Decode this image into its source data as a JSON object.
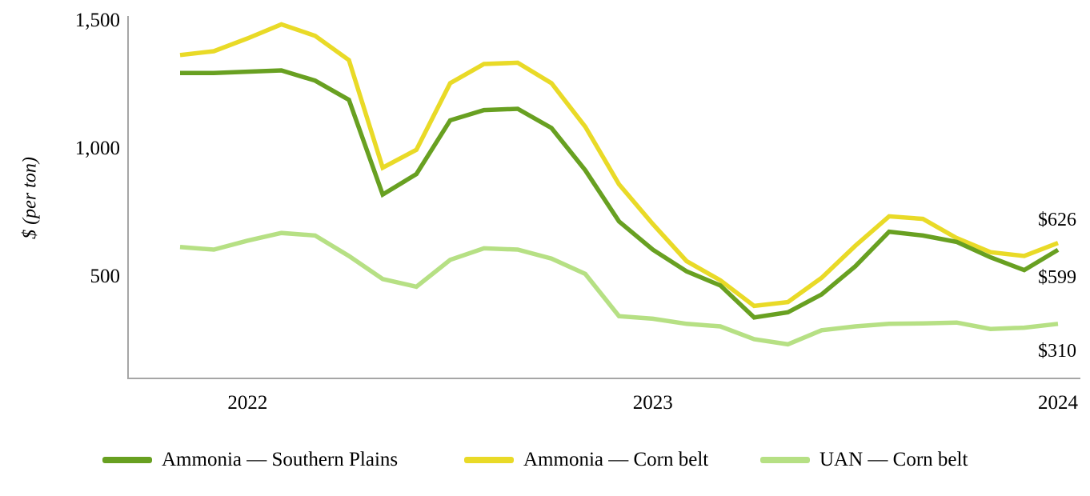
{
  "chart_data": {
    "type": "line",
    "title": "",
    "xlabel": "",
    "ylabel": "$ (per ton)",
    "grid": false,
    "legend_position": "bottom",
    "axis_color": "#a6a6a6",
    "text_color": "#000000",
    "ylim": [
      97,
      1512
    ],
    "y_ticks": [
      {
        "label": "500",
        "value": 500
      },
      {
        "label": "1,000",
        "value": 1000
      },
      {
        "label": "1,500",
        "value": 1500
      }
    ],
    "x": [
      "Nov-21",
      "Dec-21",
      "Jan-22",
      "Feb-22",
      "Mar-22",
      "Apr-22",
      "May-22",
      "Jun-22",
      "Jul-22",
      "Aug-22",
      "Sep-22",
      "Oct-22",
      "Nov-22",
      "Dec-22",
      "Jan-23",
      "Feb-23",
      "Mar-23",
      "Apr-23",
      "May-23",
      "Jun-23",
      "Jul-23",
      "Aug-23",
      "Sep-23",
      "Oct-23",
      "Nov-23",
      "Dec-23",
      "Jan-24"
    ],
    "x_ticks": [
      {
        "label": "2022",
        "month_index": 2
      },
      {
        "label": "2023",
        "month_index": 14
      },
      {
        "label": "2024",
        "month_index": 26
      }
    ],
    "series": [
      {
        "name": "Ammonia — Southern Plains",
        "color": "#68a021",
        "end_label": "$599",
        "values": [
          1290,
          1290,
          1295,
          1300,
          1260,
          1185,
          815,
          895,
          1105,
          1145,
          1150,
          1075,
          910,
          710,
          600,
          515,
          460,
          335,
          355,
          425,
          535,
          670,
          655,
          630,
          570,
          520,
          599
        ]
      },
      {
        "name": "Ammonia — Corn belt",
        "color": "#e9da27",
        "end_label": "$626",
        "values": [
          1360,
          1375,
          1425,
          1480,
          1435,
          1340,
          920,
          990,
          1250,
          1325,
          1330,
          1250,
          1080,
          855,
          700,
          555,
          480,
          380,
          395,
          490,
          615,
          730,
          720,
          645,
          590,
          575,
          626
        ]
      },
      {
        "name": "UAN — Corn belt",
        "color": "#b6e084",
        "end_label": "$310",
        "values": [
          610,
          600,
          635,
          665,
          655,
          575,
          485,
          455,
          560,
          605,
          600,
          565,
          505,
          340,
          330,
          310,
          300,
          250,
          230,
          285,
          300,
          310,
          312,
          315,
          290,
          295,
          310
        ]
      }
    ]
  }
}
